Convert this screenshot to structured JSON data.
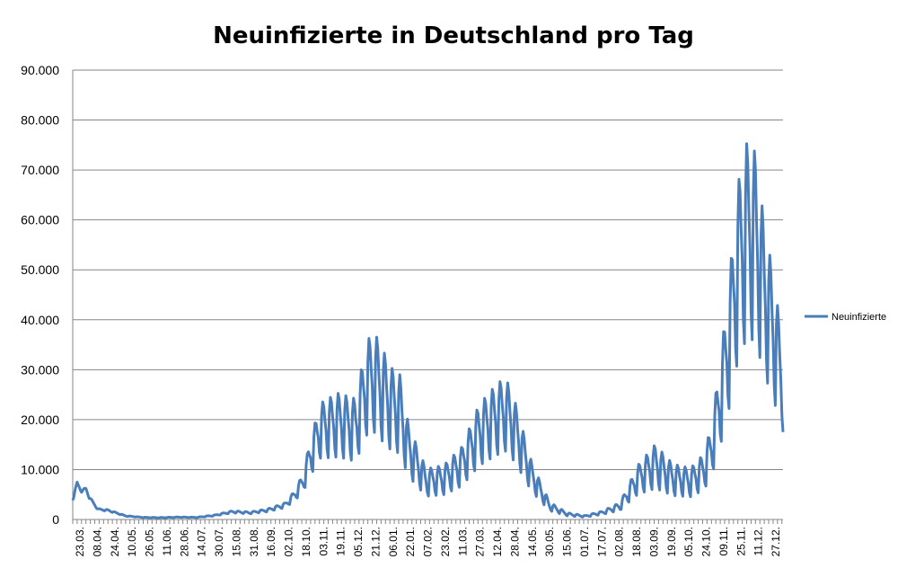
{
  "chart_data": {
    "type": "line",
    "title": "Neuinfizierte in Deutschland pro Tag",
    "xlabel": "",
    "ylabel": "",
    "ylim": [
      0,
      90000
    ],
    "y_ticks": [
      0,
      10000,
      20000,
      30000,
      40000,
      50000,
      60000,
      70000,
      80000,
      90000
    ],
    "y_tick_labels": [
      "0",
      "10.000",
      "20.000",
      "30.000",
      "40.000",
      "50.000",
      "60.000",
      "70.000",
      "80.000",
      "90.000"
    ],
    "x_tick_labels": [
      "23.03.",
      "08.04.",
      "24.04.",
      "10.05.",
      "26.05.",
      "11.06.",
      "28.06.",
      "14.07.",
      "30.07.",
      "15.08.",
      "31.08.",
      "16.09.",
      "02.10.",
      "18.10.",
      "03.11.",
      "19.11.",
      "05.12.",
      "21.12.",
      "06.01.",
      "22.01.",
      "07.02.",
      "23.02.",
      "11.03.",
      "27.03.",
      "12.04.",
      "28.04.",
      "14.05.",
      "30.05.",
      "15.06.",
      "01.07.",
      "17.07.",
      "02.08.",
      "18.08.",
      "03.09.",
      "19.09.",
      "05.10.",
      "24.10.",
      "09.11.",
      "25.11.",
      "11.12.",
      "27.12."
    ],
    "x_range": [
      "2020-03-23",
      "2021-12-28"
    ],
    "grid": "horizontal",
    "legend_position": "right",
    "series_color": "#4a7ebb",
    "series": [
      {
        "name": "Neuinfizierte",
        "points": [
          [
            "2020-03-23",
            4000
          ],
          [
            "2020-03-27",
            7000
          ],
          [
            "2020-04-01",
            5500
          ],
          [
            "2020-04-04",
            6000
          ],
          [
            "2020-04-08",
            4000
          ],
          [
            "2020-04-15",
            2000
          ],
          [
            "2020-04-24",
            1800
          ],
          [
            "2020-05-10",
            700
          ],
          [
            "2020-05-26",
            400
          ],
          [
            "2020-06-11",
            350
          ],
          [
            "2020-06-28",
            450
          ],
          [
            "2020-07-14",
            400
          ],
          [
            "2020-07-30",
            800
          ],
          [
            "2020-08-15",
            1500
          ],
          [
            "2020-08-31",
            1300
          ],
          [
            "2020-09-16",
            1800
          ],
          [
            "2020-10-02",
            2800
          ],
          [
            "2020-10-10",
            4500
          ],
          [
            "2020-10-18",
            7000
          ],
          [
            "2020-10-25",
            12000
          ],
          [
            "2020-11-03",
            17000
          ],
          [
            "2020-11-19",
            18000
          ],
          [
            "2020-12-05",
            17000
          ],
          [
            "2020-12-15",
            25000
          ],
          [
            "2020-12-22",
            26000
          ],
          [
            "2021-01-06",
            21000
          ],
          [
            "2021-01-14",
            20000
          ],
          [
            "2021-01-22",
            13000
          ],
          [
            "2021-02-07",
            7000
          ],
          [
            "2021-02-23",
            7500
          ],
          [
            "2021-03-11",
            10000
          ],
          [
            "2021-03-27",
            16000
          ],
          [
            "2021-04-12",
            19000
          ],
          [
            "2021-04-20",
            20000
          ],
          [
            "2021-04-28",
            17000
          ],
          [
            "2021-05-14",
            8000
          ],
          [
            "2021-05-30",
            2500
          ],
          [
            "2021-06-15",
            1000
          ],
          [
            "2021-07-01",
            600
          ],
          [
            "2021-07-17",
            1300
          ],
          [
            "2021-08-02",
            2500
          ],
          [
            "2021-08-18",
            7500
          ],
          [
            "2021-09-03",
            10000
          ],
          [
            "2021-09-19",
            7500
          ],
          [
            "2021-10-05",
            7000
          ],
          [
            "2021-10-17",
            9000
          ],
          [
            "2021-10-24",
            13000
          ],
          [
            "2021-11-01",
            22000
          ],
          [
            "2021-11-09",
            33000
          ],
          [
            "2021-11-17",
            47000
          ],
          [
            "2021-11-25",
            53000
          ],
          [
            "2021-12-03",
            52000
          ],
          [
            "2021-12-11",
            42000
          ],
          [
            "2021-12-19",
            35000
          ],
          [
            "2021-12-28",
            25000
          ]
        ],
        "amplitude": [
          [
            "2020-03-23",
            0.08
          ],
          [
            "2020-10-01",
            0.2
          ],
          [
            "2020-10-25",
            0.35
          ],
          [
            "2020-11-15",
            0.4
          ],
          [
            "2021-01-01",
            0.45
          ],
          [
            "2021-03-01",
            0.45
          ],
          [
            "2021-05-30",
            0.4
          ],
          [
            "2021-07-15",
            0.3
          ],
          [
            "2021-09-01",
            0.5
          ],
          [
            "2021-10-24",
            0.45
          ],
          [
            "2021-11-25",
            0.42
          ],
          [
            "2021-12-28",
            0.4
          ]
        ]
      }
    ]
  }
}
